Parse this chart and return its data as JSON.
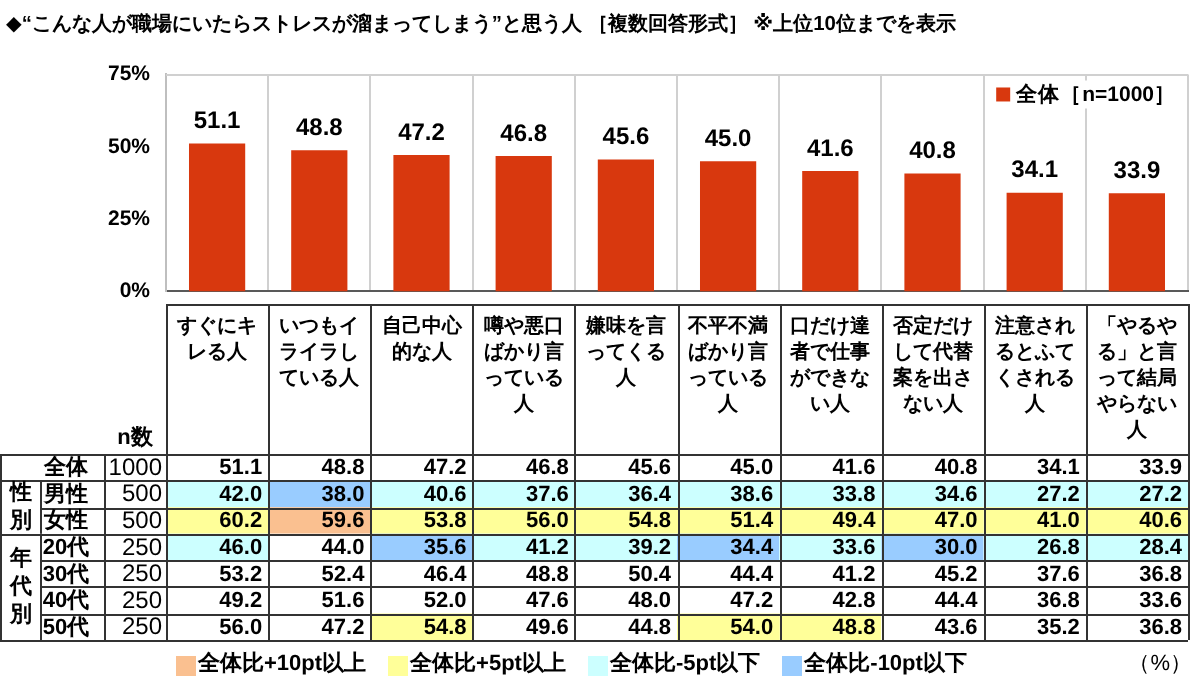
{
  "chart_data": [
    {
      "type": "bar",
      "title": "◆“こんな人が職場にいたらストレスが溜まってしまう”と思う人 ［複数回答形式］ ※上位10位までを表示",
      "categories": [
        null,
        null,
        null,
        null,
        null,
        null,
        null,
        null,
        null,
        null
      ],
      "series": [
        {
          "name": "全体［n=1000］",
          "color": "#d8380e",
          "values": [
            51.1,
            48.8,
            47.2,
            46.8,
            45.6,
            45.0,
            41.6,
            40.8,
            34.1,
            33.9
          ],
          "value_labels": [
            "51.1",
            "48.8",
            "47.2",
            "46.8",
            "45.6",
            "45.0",
            "41.6",
            "40.8",
            "34.1",
            "33.9"
          ]
        }
      ],
      "ylim": [
        0,
        75
      ],
      "yticks": [
        {
          "value": 0,
          "label": "0%"
        },
        {
          "value": 25,
          "label": "25%"
        },
        {
          "value": 50,
          "label": "50%"
        },
        {
          "value": 75,
          "label": "75%"
        }
      ],
      "grid": "x",
      "legend": "top right"
    },
    {
      "type": "heatmap",
      "categories": [
        "すぐにキレる人",
        "いつもイライラしている人",
        "自己中心的な人",
        "噂や悪口ばかり言っている人",
        "嫌味を言ってくる人",
        "不平不満ばかり言っている人",
        "口だけ達者で仕事ができない人",
        "否定だけして代替案を出さない人",
        "注意されるとふてくされる人",
        "「やるやる」と言って結局やらない人"
      ],
      "y_categories": [
        "全体",
        "男性",
        "女性",
        "20代",
        "30代",
        "40代",
        "50代"
      ],
      "y2_categories": [
        "1000",
        "500",
        "500",
        "250",
        "250",
        "250",
        "250"
      ],
      "y2label": "n数",
      "cells": [
        [
          51.1,
          48.8,
          47.2,
          46.8,
          45.6,
          45.0,
          41.6,
          40.8,
          34.1,
          33.9
        ],
        [
          42.0,
          38.0,
          40.6,
          37.6,
          36.4,
          38.6,
          33.8,
          34.6,
          27.2,
          27.2
        ],
        [
          60.2,
          59.6,
          53.8,
          56.0,
          54.8,
          51.4,
          49.4,
          47.0,
          41.0,
          40.6
        ],
        [
          46.0,
          44.0,
          35.6,
          41.2,
          39.2,
          34.4,
          33.6,
          30.0,
          26.8,
          28.4
        ],
        [
          53.2,
          52.4,
          46.4,
          48.8,
          50.4,
          44.4,
          41.2,
          45.2,
          37.6,
          36.8
        ],
        [
          49.2,
          51.6,
          52.0,
          47.6,
          48.0,
          47.2,
          42.8,
          44.4,
          36.8,
          33.6
        ],
        [
          56.0,
          47.2,
          54.8,
          49.6,
          44.8,
          54.0,
          48.8,
          43.6,
          35.2,
          36.8
        ]
      ],
      "cell_labels": [
        [
          "51.1",
          "48.8",
          "47.2",
          "46.8",
          "45.6",
          "45.0",
          "41.6",
          "40.8",
          "34.1",
          "33.9"
        ],
        [
          "42.0",
          "38.0",
          "40.6",
          "37.6",
          "36.4",
          "38.6",
          "33.8",
          "34.6",
          "27.2",
          "27.2"
        ],
        [
          "60.2",
          "59.6",
          "53.8",
          "56.0",
          "54.8",
          "51.4",
          "49.4",
          "47.0",
          "41.0",
          "40.6"
        ],
        [
          "46.0",
          "44.0",
          "35.6",
          "41.2",
          "39.2",
          "34.4",
          "33.6",
          "30.0",
          "26.8",
          "28.4"
        ],
        [
          "53.2",
          "52.4",
          "46.4",
          "48.8",
          "50.4",
          "44.4",
          "41.2",
          "45.2",
          "37.6",
          "36.8"
        ],
        [
          "49.2",
          "51.6",
          "52.0",
          "47.6",
          "48.0",
          "47.2",
          "42.8",
          "44.4",
          "36.8",
          "33.6"
        ],
        [
          "56.0",
          "47.2",
          "54.8",
          "49.6",
          "44.8",
          "54.0",
          "48.8",
          "43.6",
          "35.2",
          "36.8"
        ]
      ],
      "colors": [
        [
          "#ffffff",
          "#ffffff",
          "#ffffff",
          "#ffffff",
          "#ffffff",
          "#ffffff",
          "#ffffff",
          "#ffffff",
          "#ffffff",
          "#ffffff"
        ],
        [
          "#ccffff",
          "#99ccff",
          "#ccffff",
          "#ccffff",
          "#ccffff",
          "#ccffff",
          "#ccffff",
          "#ccffff",
          "#ccffff",
          "#ccffff"
        ],
        [
          "#ffff99",
          "#fac090",
          "#ffff99",
          "#ffff99",
          "#ffff99",
          "#ffff99",
          "#ffff99",
          "#ffff99",
          "#ffff99",
          "#ffff99"
        ],
        [
          "#ccffff",
          "#ffffff",
          "#99ccff",
          "#ccffff",
          "#ccffff",
          "#99ccff",
          "#ccffff",
          "#99ccff",
          "#ccffff",
          "#ccffff"
        ],
        [
          "#ffffff",
          "#ffffff",
          "#ffffff",
          "#ffffff",
          "#ffffff",
          "#ffffff",
          "#ffffff",
          "#ffffff",
          "#ffffff",
          "#ffffff"
        ],
        [
          "#ffffff",
          "#ffffff",
          "#ffffff",
          "#ffffff",
          "#ffffff",
          "#ffffff",
          "#ffffff",
          "#ffffff",
          "#ffffff",
          "#ffffff"
        ],
        [
          "#ffffff",
          "#ffffff",
          "#ffff99",
          "#ffffff",
          "#ffffff",
          "#ffff99",
          "#ffff99",
          "#ffffff",
          "#ffffff",
          "#ffffff"
        ]
      ],
      "annotations": [
        "性別",
        "年代別"
      ]
    },
    {
      "type": "other",
      "annotations": [
        "全体比+10pt以上",
        "全体比+5pt以上",
        "全体比-5pt以下",
        "全体比-10pt以下",
        "（%）"
      ],
      "colors": [
        "#fac090",
        "#ffff99",
        "#ccffff",
        "#99ccff"
      ]
    }
  ]
}
